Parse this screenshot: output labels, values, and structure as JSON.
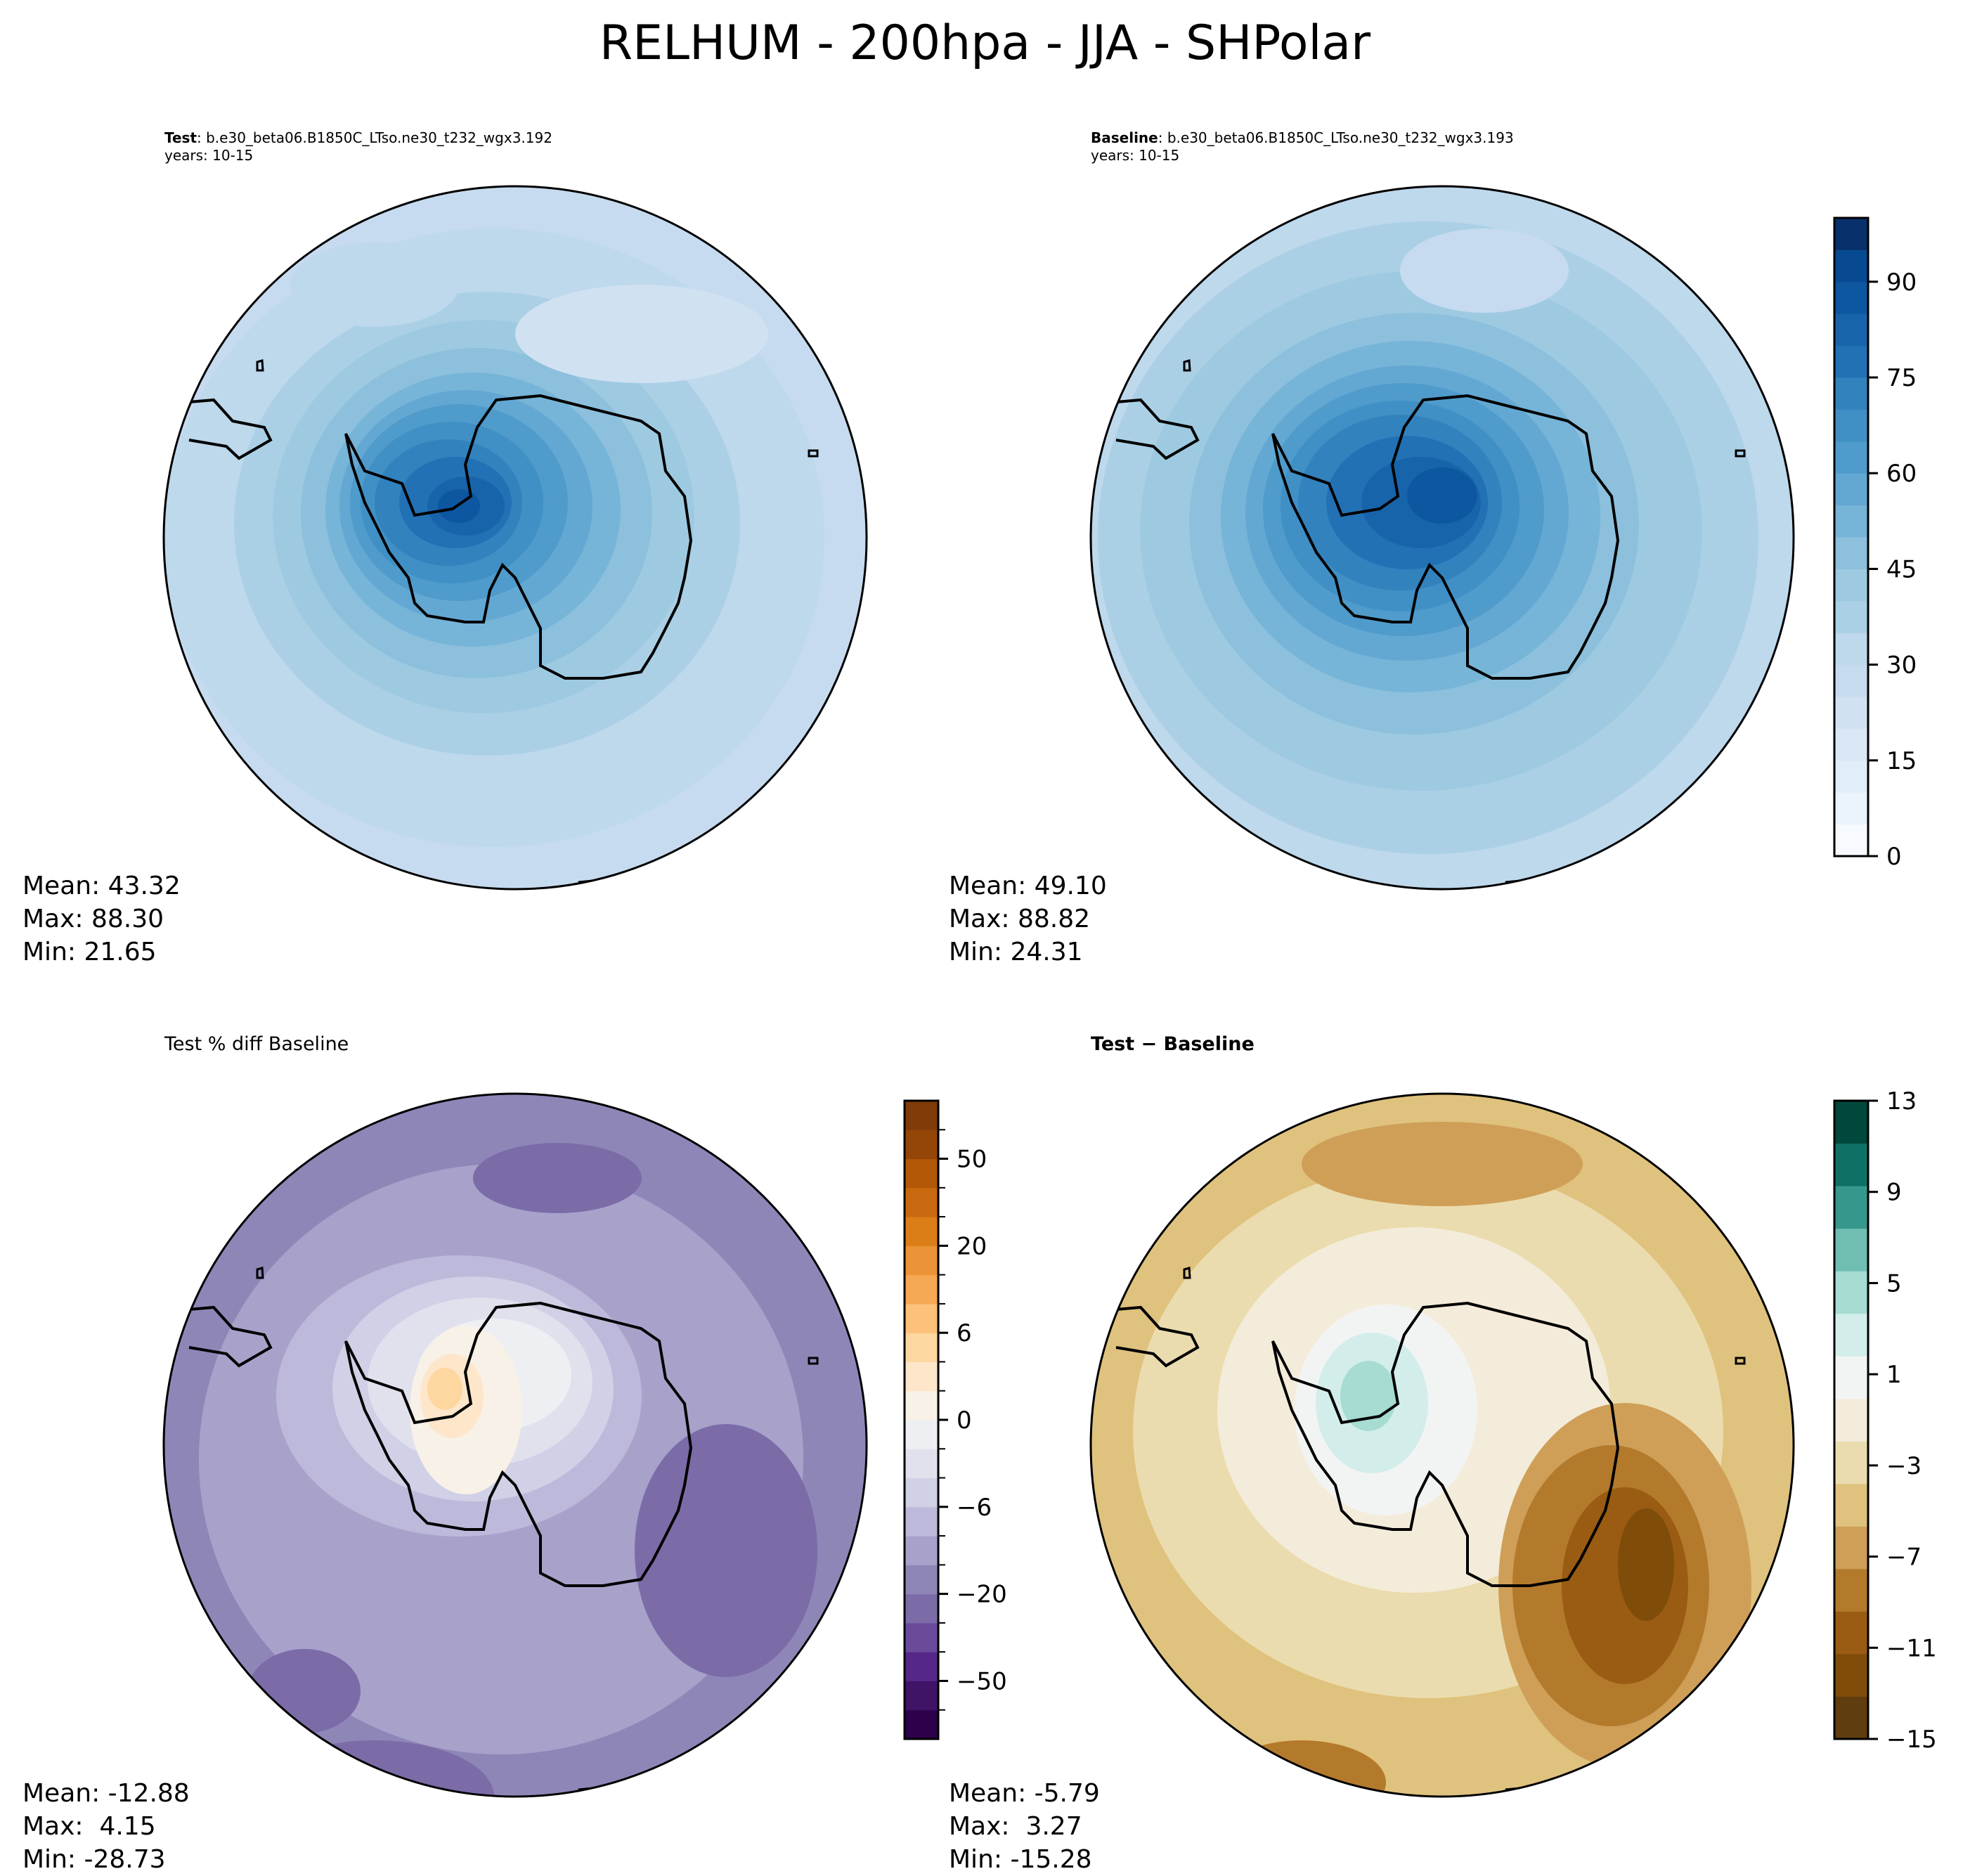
{
  "suptitle": "RELHUM - 200hpa - JJA - SHPolar",
  "panels": {
    "test": {
      "label": "Test",
      "case": ": b.e30_beta06.B1850C_LTso.ne30_t232_wgx3.192",
      "years": "years: 10-15",
      "mean": "Mean: 43.32",
      "max": "Max: 88.30",
      "min": "Min: 21.65"
    },
    "baseline": {
      "label": "Baseline",
      "case": ": b.e30_beta06.B1850C_LTso.ne30_t232_wgx3.193",
      "years": "years: 10-15",
      "mean": "Mean: 49.10",
      "max": "Max: 88.82",
      "min": "Min: 24.31"
    },
    "pctdiff": {
      "title": "Test % diff Baseline",
      "mean": "Mean: -12.88",
      "max": "Max:  4.15",
      "min": "Min: -28.73"
    },
    "diff": {
      "title": "Test − Baseline",
      "mean": "Mean: -5.79",
      "max": "Max:  3.27",
      "min": "Min: -15.28"
    }
  },
  "chart_data": [
    {
      "type": "heatmap",
      "panel": "test",
      "projection": "south polar stereographic",
      "colormap": "Blues",
      "levels_range": [
        0,
        100
      ],
      "level_step": 5,
      "colorbar_ticks": [
        "0",
        "15",
        "30",
        "45",
        "60",
        "75",
        "90"
      ],
      "stats": {
        "mean": 43.32,
        "max": 88.3,
        "min": 21.65
      }
    },
    {
      "type": "heatmap",
      "panel": "baseline",
      "projection": "south polar stereographic",
      "colormap": "Blues",
      "levels_range": [
        0,
        100
      ],
      "level_step": 5,
      "colorbar_ticks": [
        "0",
        "15",
        "30",
        "45",
        "60",
        "75",
        "90"
      ],
      "stats": {
        "mean": 49.1,
        "max": 88.82,
        "min": 24.31
      }
    },
    {
      "type": "heatmap",
      "panel": "pctdiff",
      "projection": "south polar stereographic",
      "colormap": "PuOr_r",
      "colorbar_ticks": [
        "−50",
        "−20",
        "−6",
        "0",
        "6",
        "20",
        "50"
      ],
      "stats": {
        "mean": -12.88,
        "max": 4.15,
        "min": -28.73
      }
    },
    {
      "type": "heatmap",
      "panel": "diff",
      "projection": "south polar stereographic",
      "colormap": "BrBG",
      "levels_range": [
        -15,
        13
      ],
      "level_step": 2,
      "colorbar_ticks": [
        "−15",
        "−11",
        "−7",
        "−3",
        "1",
        "5",
        "9",
        "13"
      ],
      "stats": {
        "mean": -5.79,
        "max": 3.27,
        "min": -15.28
      }
    }
  ],
  "colors": {
    "blues": [
      "#f7fbff",
      "#ebf3fb",
      "#e1edf8",
      "#dae8f6",
      "#d0e1f2",
      "#c6dbef",
      "#bed8ec",
      "#abd0e6",
      "#9ecae1",
      "#8cc0dd",
      "#76b4d8",
      "#63a8d3",
      "#4f9bcb",
      "#4090c5",
      "#3282be",
      "#2271b5",
      "#1764ab",
      "#0d56a0",
      "#084a91",
      "#08306b"
    ],
    "puor": [
      "#2d004b",
      "#3f1366",
      "#542788",
      "#6a4a9b",
      "#7b6ca8",
      "#8f86b8",
      "#a8a2cb",
      "#bdb9da",
      "#d0d0e6",
      "#e1e1ee",
      "#eeeff2",
      "#f8f1e7",
      "#fee6ca",
      "#fed7a0",
      "#fdc17a",
      "#f6a855",
      "#ea9337",
      "#dc7e18",
      "#c96910",
      "#b35806",
      "#944608",
      "#7f3b08"
    ],
    "brbg": [
      "#603d0e",
      "#7f4c09",
      "#995c12",
      "#b47a2c",
      "#cf9f58",
      "#dfc27d",
      "#eadcae",
      "#f4ecda",
      "#f2f4f4",
      "#d3eeea",
      "#a6dcd2",
      "#6fbeb1",
      "#36978d",
      "#0f7166",
      "#00483c"
    ],
    "coast": "#000000"
  }
}
